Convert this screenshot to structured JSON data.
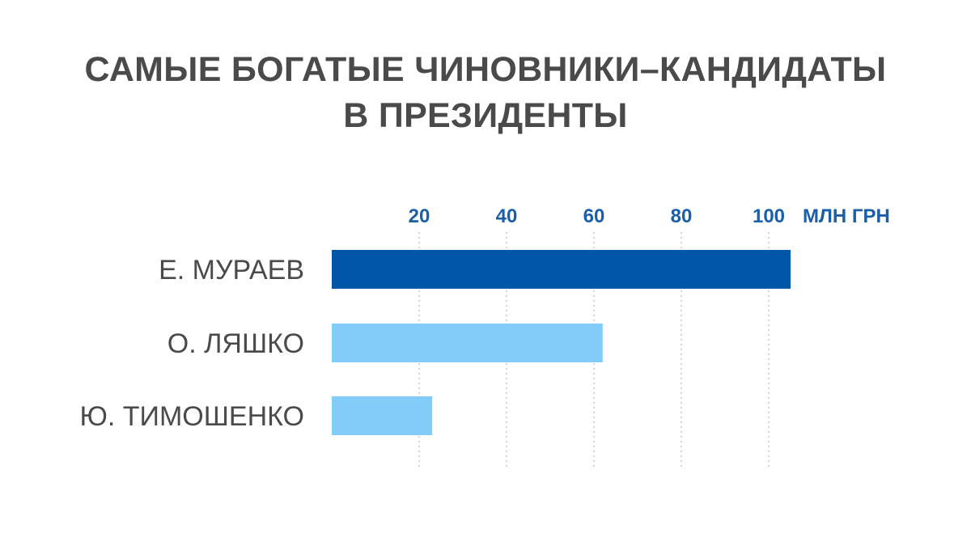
{
  "chart_data": {
    "type": "bar",
    "orientation": "horizontal",
    "title_lines": [
      "САМЫЕ БОГАТЫЕ ЧИНОВНИКИ–КАНДИДАТЫ",
      "В ПРЕЗИДЕНТЫ"
    ],
    "unit_label": "МЛН ГРН",
    "categories": [
      "Е. МУРАЕВ",
      "О. ЛЯШКО",
      "Ю. ТИМОШЕНКО"
    ],
    "values": [
      105,
      62,
      23
    ],
    "highlight_index": 0,
    "xlim": [
      0,
      105
    ],
    "xticks": [
      20,
      40,
      60,
      80,
      100
    ],
    "grid": "vertical-dotted",
    "colors": {
      "highlight_bar": "#0057a8",
      "bar": "#82ccfa",
      "tick_labels": "#1b5fa8",
      "category_labels": "#4a4a4a",
      "grid": "#bdbdbd",
      "title": "#4a4a4a"
    }
  }
}
